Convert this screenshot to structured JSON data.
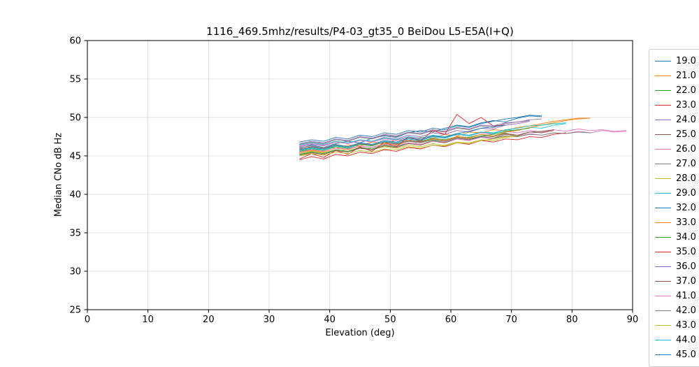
{
  "chart_data": {
    "type": "line",
    "title": "1116_469.5mhz/results/P4-03_gt35_0 BeiDou L5-E5A(I+Q)",
    "xlabel": "Elevation (deg)",
    "ylabel": "Median CNo dB Hz",
    "xlim": [
      0,
      90
    ],
    "ylim": [
      25,
      60
    ],
    "xticks": [
      0,
      10,
      20,
      30,
      40,
      50,
      60,
      70,
      80,
      90
    ],
    "yticks": [
      25,
      30,
      35,
      40,
      45,
      50,
      55,
      60
    ],
    "grid": true,
    "grid_color": "#d9d9d9",
    "legend_position": "right",
    "series": [
      {
        "name": "19.0",
        "color": "#1f77b4",
        "x0": 35,
        "dx": 2,
        "y": [
          46.0,
          46.4,
          46.1,
          46.6,
          46.9,
          46.7,
          47.3,
          47.6,
          47.4,
          48.0,
          48.3,
          48.1,
          48.6,
          49.0,
          48.8,
          49.3,
          49.6,
          49.4,
          49.9,
          50.2,
          50.1
        ]
      },
      {
        "name": "21.0",
        "color": "#ff7f0e",
        "x0": 35,
        "dx": 2,
        "y": [
          45.8,
          45.6,
          46.1,
          46.0,
          46.4,
          46.3,
          46.8,
          46.6,
          47.1,
          47.0,
          47.4,
          47.3,
          47.8,
          47.6,
          48.1,
          48.0,
          48.4,
          48.3,
          48.7,
          48.9,
          49.2,
          49.5,
          49.7,
          49.9,
          49.9
        ]
      },
      {
        "name": "22.0",
        "color": "#2ca02c",
        "x0": 35,
        "dx": 2,
        "y": [
          45.6,
          45.9,
          45.7,
          46.2,
          46.0,
          46.5,
          46.3,
          46.8,
          46.6,
          47.0,
          46.9,
          47.3,
          47.1,
          47.5,
          47.4,
          47.8,
          47.6,
          48.0,
          47.5
        ]
      },
      {
        "name": "23.0",
        "color": "#d62728",
        "x0": 35,
        "dx": 2,
        "y": [
          44.5,
          44.9,
          44.6,
          45.2,
          45.0,
          45.5,
          45.3,
          45.8,
          45.6,
          46.1,
          45.9,
          46.4,
          46.2,
          46.7,
          46.5,
          47.0,
          46.8,
          47.2,
          47.1,
          47.5,
          47.4,
          47.8,
          48.0
        ]
      },
      {
        "name": "24.0",
        "color": "#9467bd",
        "x0": 35,
        "dx": 2,
        "y": [
          46.2,
          46.5,
          46.3,
          46.8,
          46.6,
          47.1,
          46.9,
          47.4,
          47.2,
          47.7,
          47.5,
          48.0,
          47.8,
          48.3,
          48.1,
          48.6,
          48.5,
          49.0,
          49.2,
          49.5
        ]
      },
      {
        "name": "25.0",
        "color": "#8c564b",
        "x0": 35,
        "dx": 2,
        "y": [
          45.9,
          46.2,
          46.0,
          46.4,
          46.2,
          46.6,
          46.4,
          46.8,
          46.6,
          47.0,
          46.8,
          47.2,
          47.0,
          47.4,
          47.2,
          47.6,
          47.5,
          47.9,
          47.7,
          48.1,
          48.0,
          48.3
        ]
      },
      {
        "name": "26.0",
        "color": "#e377c2",
        "x0": 35,
        "dx": 2,
        "y": [
          46.3,
          46.6,
          46.4,
          46.8,
          46.6,
          47.0,
          46.8,
          47.2,
          47.0,
          47.4,
          47.2,
          47.6,
          47.4,
          47.8,
          47.6,
          48.0,
          47.8,
          48.2,
          48.0,
          48.3,
          48.1,
          48.4,
          48.2,
          48.5,
          48.3,
          48.4,
          48.2,
          48.3
        ]
      },
      {
        "name": "27.0",
        "color": "#7f7f7f",
        "x0": 35,
        "dx": 2,
        "y": [
          46.5,
          46.8,
          46.6,
          47.1,
          46.9,
          47.4,
          47.2,
          47.7,
          47.5,
          48.0,
          47.8,
          48.3,
          48.1,
          48.6,
          48.4,
          48.9,
          48.7,
          49.2,
          49.4,
          49.7,
          49.8
        ]
      },
      {
        "name": "28.0",
        "color": "#bcbd22",
        "x0": 35,
        "dx": 2,
        "y": [
          45.3,
          45.6,
          45.4,
          45.8,
          45.6,
          46.0,
          45.8,
          46.2,
          46.0,
          46.4,
          46.2,
          46.6,
          46.4,
          46.8,
          46.7,
          47.1,
          47.0,
          47.4,
          47.6
        ]
      },
      {
        "name": "29.0",
        "color": "#17becf",
        "x0": 35,
        "dx": 2,
        "y": [
          45.7,
          46.0,
          45.8,
          46.3,
          46.1,
          46.6,
          46.4,
          46.9,
          46.7,
          47.2,
          47.0,
          47.5,
          47.3,
          47.8,
          47.6,
          48.1,
          47.9,
          48.4,
          48.3,
          48.7,
          48.6,
          49.0,
          49.2
        ]
      },
      {
        "name": "32.0",
        "color": "#1f77b4",
        "x0": 35,
        "dx": 2,
        "y": [
          46.8,
          47.1,
          46.9,
          47.4,
          47.2,
          47.7,
          47.5,
          48.0,
          47.8,
          48.3,
          48.1,
          48.6,
          48.4,
          48.9,
          48.7,
          49.2,
          49.5,
          49.8,
          50.0,
          50.3,
          50.2
        ]
      },
      {
        "name": "33.0",
        "color": "#ff7f0e",
        "x0": 35,
        "dx": 2,
        "y": [
          45.4,
          45.7,
          45.5,
          46.0,
          45.8,
          46.3,
          46.1,
          46.6,
          46.4,
          46.9,
          46.7,
          47.2,
          47.0,
          47.5,
          47.3,
          47.8,
          47.6,
          48.1,
          48.3,
          48.7,
          49.0,
          49.3,
          49.6,
          49.8,
          49.9
        ]
      },
      {
        "name": "34.0",
        "color": "#2ca02c",
        "x0": 35,
        "dx": 2,
        "y": [
          45.2,
          45.5,
          45.3,
          45.8,
          45.6,
          46.1,
          45.9,
          46.4,
          46.2,
          46.7,
          46.5,
          47.0,
          46.8,
          47.3,
          47.1,
          47.6,
          47.8,
          48.2,
          48.4,
          48.6
        ]
      },
      {
        "name": "35.0",
        "color": "#d62728",
        "x0": 35,
        "dx": 2,
        "y": [
          44.6,
          45.3,
          44.8,
          45.7,
          45.2,
          46.2,
          45.6,
          46.8,
          46.2,
          47.5,
          46.9,
          48.3,
          47.8,
          50.4,
          49.2,
          50.0,
          48.9,
          49.0
        ]
      },
      {
        "name": "36.0",
        "color": "#9467bd",
        "x0": 35,
        "dx": 2,
        "y": [
          46.6,
          46.9,
          46.7,
          47.2,
          47.0,
          47.5,
          47.3,
          47.8,
          47.6,
          48.1,
          47.9,
          48.4,
          48.2,
          48.7,
          48.5,
          49.0,
          48.9,
          49.3,
          49.4,
          49.6
        ]
      },
      {
        "name": "37.0",
        "color": "#8c564b",
        "x0": 35,
        "dx": 2,
        "y": [
          45.1,
          45.4,
          45.2,
          45.7,
          45.5,
          46.0,
          45.8,
          46.3,
          46.1,
          46.6,
          46.4,
          46.9,
          46.7,
          47.2,
          47.0,
          47.5,
          47.3,
          47.8,
          47.6,
          48.1,
          48.2,
          48.4
        ]
      },
      {
        "name": "41.0",
        "color": "#e377c2",
        "x0": 35,
        "dx": 2,
        "y": [
          45.5,
          45.8,
          45.6,
          46.0,
          45.9,
          46.3,
          46.1,
          46.5,
          46.3,
          46.7,
          46.5,
          46.9,
          46.8,
          47.2,
          47.0,
          47.4,
          47.2,
          47.6,
          47.5,
          47.9,
          47.7,
          48.0,
          47.9,
          48.2,
          48.0,
          48.3,
          48.1,
          48.2
        ]
      },
      {
        "name": "42.0",
        "color": "#7f7f7f",
        "x0": 35,
        "dx": 2,
        "y": [
          46.1,
          46.3,
          46.0,
          46.5,
          46.2,
          46.6,
          46.4,
          46.8,
          46.5,
          46.9,
          46.7,
          47.1,
          46.9,
          47.3,
          47.1,
          47.5,
          47.3,
          47.6,
          47.5,
          47.8,
          47.7,
          48.0,
          47.9,
          48.1,
          48.0
        ]
      },
      {
        "name": "43.0",
        "color": "#bcbd22",
        "x0": 35,
        "dx": 2,
        "y": [
          45.0,
          45.3,
          45.1,
          45.5,
          45.3,
          45.7,
          45.5,
          45.9,
          45.8,
          46.2,
          46.0,
          46.4,
          46.3,
          46.7,
          46.6,
          47.0,
          47.2,
          47.5,
          47.6
        ]
      },
      {
        "name": "44.0",
        "color": "#17becf",
        "x0": 35,
        "dx": 2,
        "y": [
          46.4,
          46.7,
          46.5,
          46.9,
          46.7,
          47.1,
          46.9,
          47.3,
          47.1,
          47.5,
          47.3,
          47.7,
          47.5,
          47.9,
          47.7,
          48.1,
          48.0,
          48.4,
          48.6,
          48.9,
          49.0,
          49.2,
          49.3
        ]
      },
      {
        "name": "45.0",
        "color": "#1f77b4",
        "x0": 35,
        "dx": 2,
        "y": [
          45.8,
          46.1,
          45.9,
          46.4,
          46.2,
          46.7,
          46.5,
          47.0,
          46.8,
          47.3,
          47.1,
          47.6,
          47.4,
          47.9,
          48.2,
          48.6,
          48.8,
          49.0
        ]
      }
    ]
  }
}
